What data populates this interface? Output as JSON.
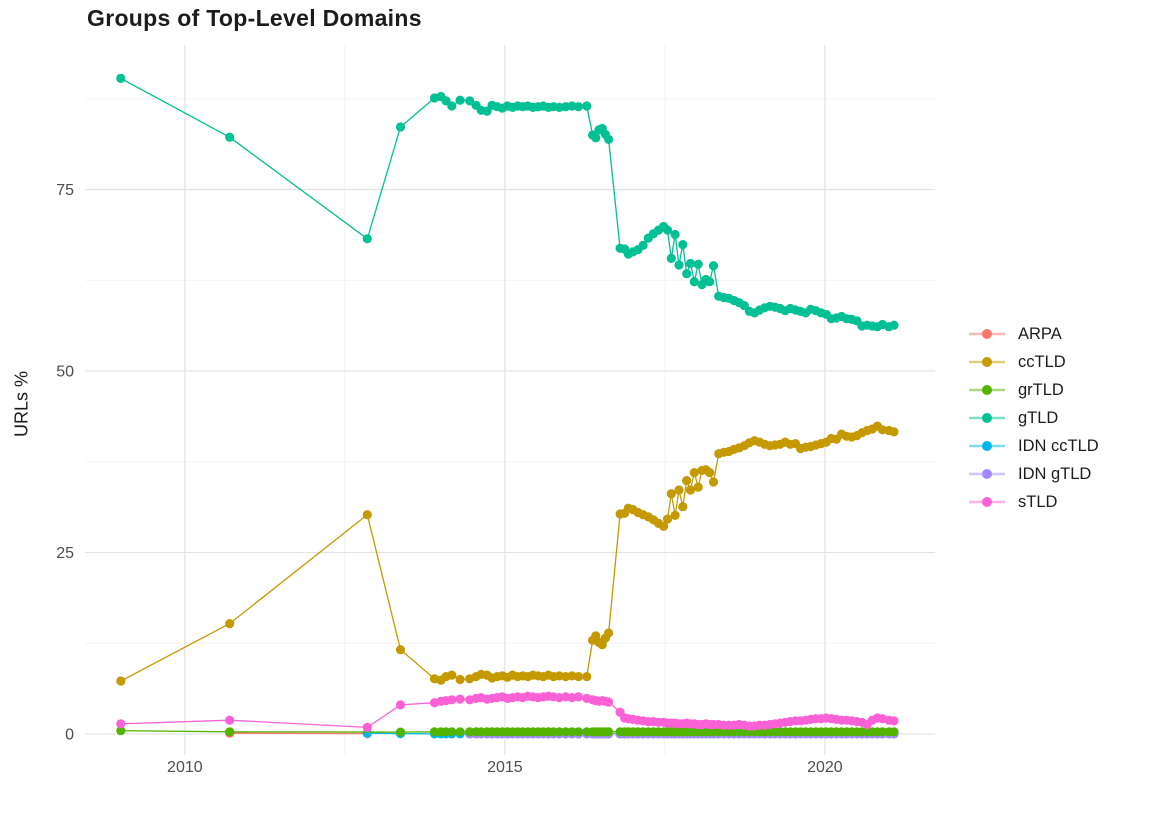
{
  "title": "Groups of Top-Level Domains",
  "axes": {
    "y_title": "URLs %",
    "y_tick_labels": [
      "0",
      "25",
      "50",
      "75"
    ],
    "x_tick_labels": [
      "2010",
      "2015",
      "2020"
    ]
  },
  "legend": {
    "items": [
      "ARPA",
      "ccTLD",
      "grTLD",
      "gTLD",
      "IDN ccTLD",
      "IDN gTLD",
      "sTLD"
    ]
  },
  "colors": {
    "arpa": "#F8766D",
    "cctld": "#C49A00",
    "grtld": "#53B400",
    "gtld": "#00C094",
    "idn_cctld": "#00B6EB",
    "idn_gtld": "#A58AFF",
    "stld": "#FB61D7",
    "tick_text": "#4d4d4d",
    "title_text": "#1c1c1c",
    "grid_major": "#e2e2e2",
    "grid_minor": "#f0f0f0"
  },
  "chart_data": {
    "type": "line",
    "title": "Groups of Top-Level Domains",
    "xlabel": "",
    "ylabel": "URLs %",
    "xlim": [
      2008.44,
      2021.72
    ],
    "ylim": [
      -2.9,
      94.9
    ],
    "x_major_ticks": [
      2010,
      2015,
      2020
    ],
    "x_minor_ticks": [
      2012.5,
      2017.5
    ],
    "y_major_ticks": [
      0,
      25,
      50,
      75
    ],
    "y_minor_ticks": [
      12.5,
      37.5,
      62.5,
      87.5
    ],
    "grid": true,
    "legend_position": "right",
    "x_dense": [
      2013.9,
      2014.0,
      2014.08,
      2014.17,
      2014.3,
      2014.45,
      2014.55,
      2014.63,
      2014.72,
      2014.8,
      2014.88,
      2014.96,
      2015.04,
      2015.12,
      2015.2,
      2015.28,
      2015.36,
      2015.44,
      2015.52,
      2015.6,
      2015.68,
      2015.76,
      2015.85,
      2015.95,
      2016.05,
      2016.15,
      2016.28,
      2016.37,
      2016.42,
      2016.47,
      2016.52,
      2016.57,
      2016.62,
      2016.8,
      2016.87,
      2016.93,
      2017.0,
      2017.08,
      2017.16,
      2017.24,
      2017.32,
      2017.4,
      2017.48,
      2017.54,
      2017.6,
      2017.66,
      2017.72,
      2017.78,
      2017.84,
      2017.9,
      2017.96,
      2018.02,
      2018.08,
      2018.14,
      2018.2,
      2018.26,
      2018.34,
      2018.42,
      2018.5,
      2018.58,
      2018.66,
      2018.74,
      2018.82,
      2018.9,
      2018.98,
      2019.06,
      2019.14,
      2019.22,
      2019.3,
      2019.38,
      2019.46,
      2019.54,
      2019.62,
      2019.7,
      2019.78,
      2019.86,
      2019.94,
      2020.02,
      2020.1,
      2020.18,
      2020.26,
      2020.34,
      2020.42,
      2020.5,
      2020.58,
      2020.66,
      2020.74,
      2020.82,
      2020.9,
      2021.0,
      2021.08
    ],
    "series": [
      {
        "name": "ARPA",
        "color": "#F8766D",
        "zorder": 0,
        "points": [
          [
            2010.7,
            0.1
          ],
          [
            2012.85,
            0.05
          ]
        ]
      },
      {
        "name": "ccTLD",
        "color": "#C49A00",
        "zorder": 4,
        "points": [
          [
            2009,
            7.3
          ],
          [
            2010.7,
            15.2
          ],
          [
            2012.85,
            30.2
          ],
          [
            2013.37,
            11.6
          ]
        ],
        "dense_values": [
          7.6,
          7.4,
          7.9,
          8.1,
          7.5,
          7.6,
          7.9,
          8.2,
          8.1,
          7.7,
          7.9,
          8.0,
          7.8,
          8.1,
          7.9,
          8.0,
          7.9,
          8.1,
          8.0,
          7.9,
          8.1,
          7.9,
          8.0,
          7.9,
          8.0,
          7.9,
          7.9,
          12.9,
          13.5,
          12.6,
          12.3,
          13.2,
          13.9,
          30.3,
          30.4,
          31.1,
          30.9,
          30.5,
          30.2,
          29.9,
          29.5,
          29.0,
          28.6,
          29.6,
          33.1,
          30.1,
          33.6,
          31.3,
          34.9,
          33.6,
          36.0,
          34.0,
          36.3,
          36.4,
          36.0,
          34.7,
          38.6,
          38.8,
          38.9,
          39.2,
          39.4,
          39.7,
          40.1,
          40.4,
          40.2,
          39.9,
          39.7,
          39.8,
          39.9,
          40.2,
          39.9,
          40.0,
          39.3,
          39.5,
          39.6,
          39.8,
          40.0,
          40.2,
          40.7,
          40.6,
          41.3,
          41.0,
          40.9,
          41.1,
          41.5,
          41.8,
          42.0,
          42.4,
          41.9,
          41.8,
          41.6
        ]
      },
      {
        "name": "grTLD",
        "color": "#53B400",
        "zorder": 3,
        "points": [
          [
            2009,
            0.45
          ],
          [
            2010.7,
            0.3
          ],
          [
            2013.37,
            0.25
          ]
        ],
        "dense_constant": 0.3
      },
      {
        "name": "gTLD",
        "color": "#00C094",
        "zorder": 5,
        "points": [
          [
            2009,
            90.3
          ],
          [
            2010.7,
            82.2
          ],
          [
            2012.85,
            68.2
          ],
          [
            2013.37,
            83.6
          ]
        ],
        "dense_values": [
          87.6,
          87.8,
          87.2,
          86.5,
          87.3,
          87.2,
          86.6,
          85.9,
          85.8,
          86.6,
          86.4,
          86.2,
          86.5,
          86.3,
          86.5,
          86.4,
          86.5,
          86.3,
          86.4,
          86.5,
          86.3,
          86.4,
          86.3,
          86.4,
          86.5,
          86.4,
          86.5,
          82.5,
          82.1,
          83.2,
          83.4,
          82.6,
          81.9,
          66.9,
          66.8,
          66.1,
          66.4,
          66.7,
          67.3,
          68.3,
          68.9,
          69.4,
          69.9,
          69.4,
          65.5,
          68.8,
          64.6,
          67.4,
          63.4,
          64.8,
          62.3,
          64.7,
          61.9,
          62.6,
          62.3,
          64.5,
          60.3,
          60.1,
          60.0,
          59.7,
          59.4,
          59.0,
          58.2,
          58.0,
          58.4,
          58.7,
          58.9,
          58.8,
          58.6,
          58.3,
          58.6,
          58.4,
          58.2,
          58.0,
          58.5,
          58.3,
          58.0,
          57.8,
          57.2,
          57.3,
          57.5,
          57.2,
          57.1,
          56.9,
          56.2,
          56.3,
          56.2,
          56.1,
          56.4,
          56.1,
          56.3
        ]
      },
      {
        "name": "IDN ccTLD",
        "color": "#00B6EB",
        "zorder": 1,
        "points": [
          [
            2012.85,
            0.1
          ],
          [
            2013.37,
            0.05
          ]
        ],
        "dense_constant": 0.0
      },
      {
        "name": "IDN gTLD",
        "color": "#A58AFF",
        "zorder": 2,
        "points": [],
        "dense_constant": 0.0,
        "dense_from": 2014.45
      },
      {
        "name": "sTLD",
        "color": "#FB61D7",
        "zorder": 6,
        "points": [
          [
            2009,
            1.4
          ],
          [
            2010.7,
            1.9
          ],
          [
            2012.85,
            0.9
          ],
          [
            2013.37,
            4.0
          ]
        ],
        "dense_values": [
          4.3,
          4.5,
          4.6,
          4.7,
          4.8,
          4.7,
          4.9,
          5.0,
          4.8,
          4.9,
          5.0,
          5.1,
          4.9,
          5.0,
          5.1,
          5.0,
          5.2,
          5.1,
          5.0,
          5.1,
          5.2,
          5.1,
          5.0,
          5.1,
          5.0,
          5.1,
          4.9,
          4.7,
          4.6,
          4.5,
          4.6,
          4.5,
          4.4,
          3.0,
          2.2,
          2.1,
          2.0,
          1.9,
          1.8,
          1.7,
          1.7,
          1.6,
          1.6,
          1.5,
          1.5,
          1.5,
          1.4,
          1.4,
          1.5,
          1.4,
          1.4,
          1.3,
          1.3,
          1.4,
          1.3,
          1.3,
          1.3,
          1.2,
          1.2,
          1.2,
          1.3,
          1.2,
          1.1,
          1.1,
          1.2,
          1.2,
          1.3,
          1.4,
          1.5,
          1.6,
          1.7,
          1.8,
          1.8,
          1.9,
          2.0,
          2.1,
          2.1,
          2.2,
          2.1,
          2.0,
          1.9,
          1.9,
          1.8,
          1.7,
          1.6,
          1.3,
          1.9,
          2.2,
          2.1,
          1.9,
          1.8
        ]
      }
    ]
  }
}
